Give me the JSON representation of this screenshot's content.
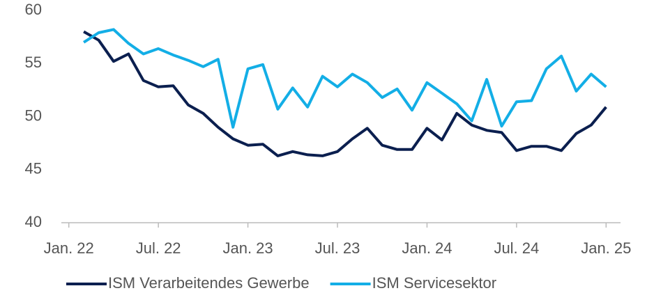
{
  "chart_data": {
    "type": "line",
    "categories": [
      "Jan. 22",
      null,
      null,
      null,
      null,
      null,
      "Jul. 22",
      null,
      null,
      null,
      null,
      null,
      "Jan. 23",
      null,
      null,
      null,
      null,
      null,
      "Jul. 23",
      null,
      null,
      null,
      null,
      null,
      "Jan. 24",
      null,
      null,
      null,
      null,
      null,
      "Jul. 24",
      null,
      null,
      null,
      null,
      null,
      "Jan. 25"
    ],
    "series": [
      {
        "name": "ISM Verarbeitendes Gewerbe",
        "color": "#0b1f4f",
        "values": [
          null,
          58.0,
          57.2,
          55.2,
          55.9,
          53.4,
          52.8,
          52.9,
          51.1,
          50.3,
          49.0,
          47.9,
          47.3,
          47.4,
          46.3,
          46.7,
          46.4,
          46.3,
          46.7,
          47.9,
          48.9,
          47.3,
          46.9,
          46.9,
          48.9,
          47.8,
          50.3,
          49.2,
          48.7,
          48.5,
          46.8,
          47.2,
          47.2,
          46.8,
          48.4,
          49.2,
          50.9
        ]
      },
      {
        "name": "ISM Servicesektor",
        "color": "#13aee6",
        "values": [
          null,
          57.0,
          57.9,
          58.2,
          56.9,
          55.9,
          56.4,
          55.8,
          55.3,
          54.7,
          55.4,
          49.0,
          54.5,
          54.9,
          50.7,
          52.7,
          50.9,
          53.8,
          52.8,
          54.0,
          53.2,
          51.8,
          52.6,
          50.6,
          53.2,
          52.2,
          51.2,
          49.6,
          53.5,
          49.1,
          51.4,
          51.5,
          54.5,
          55.7,
          52.4,
          54.0,
          52.8
        ]
      }
    ],
    "ylim": [
      40,
      60
    ],
    "yticks": [
      40,
      45,
      50,
      55,
      60
    ],
    "grid": false,
    "legend": "bottom"
  }
}
